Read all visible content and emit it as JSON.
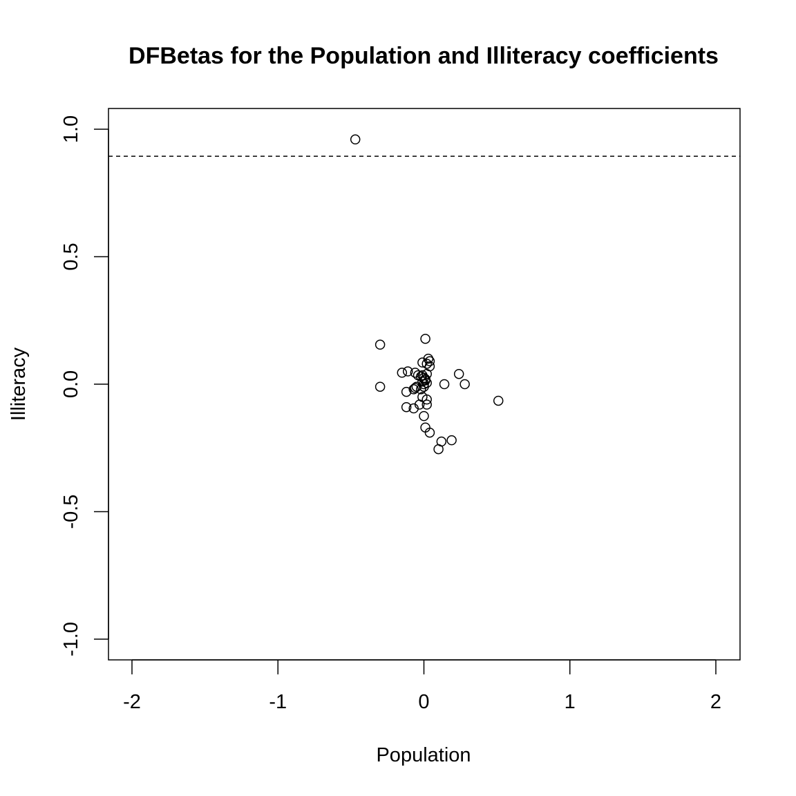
{
  "chart_data": {
    "type": "scatter",
    "title": "DFBetas for the Population and Illiteracy coefficients",
    "xlabel": "Population",
    "ylabel": "Illiteracy",
    "xlim": [
      -2,
      2
    ],
    "ylim": [
      -1,
      1
    ],
    "x_ticks": [
      -2,
      -1,
      0,
      1,
      2
    ],
    "x_tick_labels": [
      "-2",
      "-1",
      "0",
      "1",
      "2"
    ],
    "y_ticks": [
      -1,
      -0.5,
      0,
      0.5,
      1
    ],
    "y_tick_labels": [
      "-1.0",
      "-0.5",
      "0.0",
      "0.5",
      "1.0"
    ],
    "reference_line": {
      "axis": "y",
      "value": 0.894,
      "style": "dashed"
    },
    "grid": false,
    "marker": "open-circle",
    "points": [
      {
        "x": -0.47,
        "y": 0.96
      },
      {
        "x": -0.3,
        "y": 0.155
      },
      {
        "x": -0.3,
        "y": -0.01
      },
      {
        "x": 0.01,
        "y": 0.178
      },
      {
        "x": 0.03,
        "y": 0.1
      },
      {
        "x": 0.04,
        "y": 0.09
      },
      {
        "x": 0.02,
        "y": 0.08
      },
      {
        "x": 0.04,
        "y": 0.07
      },
      {
        "x": -0.01,
        "y": 0.085
      },
      {
        "x": -0.15,
        "y": 0.045
      },
      {
        "x": -0.11,
        "y": 0.05
      },
      {
        "x": -0.06,
        "y": 0.045
      },
      {
        "x": -0.04,
        "y": 0.035
      },
      {
        "x": -0.02,
        "y": 0.03
      },
      {
        "x": 0.0,
        "y": 0.025
      },
      {
        "x": 0.02,
        "y": 0.04
      },
      {
        "x": 0.01,
        "y": 0.02
      },
      {
        "x": -0.01,
        "y": 0.01
      },
      {
        "x": 0.0,
        "y": 0.0
      },
      {
        "x": 0.02,
        "y": 0.005
      },
      {
        "x": 0.01,
        "y": 0.015
      },
      {
        "x": -0.01,
        "y": 0.035
      },
      {
        "x": 0.24,
        "y": 0.04
      },
      {
        "x": 0.14,
        "y": 0.0
      },
      {
        "x": 0.28,
        "y": 0.0
      },
      {
        "x": -0.05,
        "y": -0.01
      },
      {
        "x": -0.07,
        "y": -0.02
      },
      {
        "x": -0.06,
        "y": -0.015
      },
      {
        "x": -0.12,
        "y": -0.03
      },
      {
        "x": -0.02,
        "y": -0.02
      },
      {
        "x": 0.0,
        "y": -0.01
      },
      {
        "x": -0.01,
        "y": -0.05
      },
      {
        "x": 0.02,
        "y": -0.06
      },
      {
        "x": -0.03,
        "y": -0.08
      },
      {
        "x": 0.02,
        "y": -0.08
      },
      {
        "x": -0.12,
        "y": -0.09
      },
      {
        "x": -0.07,
        "y": -0.095
      },
      {
        "x": 0.0,
        "y": -0.125
      },
      {
        "x": 0.01,
        "y": -0.17
      },
      {
        "x": 0.04,
        "y": -0.19
      },
      {
        "x": 0.12,
        "y": -0.225
      },
      {
        "x": 0.19,
        "y": -0.22
      },
      {
        "x": 0.1,
        "y": -0.255
      },
      {
        "x": 0.51,
        "y": -0.065
      }
    ]
  }
}
